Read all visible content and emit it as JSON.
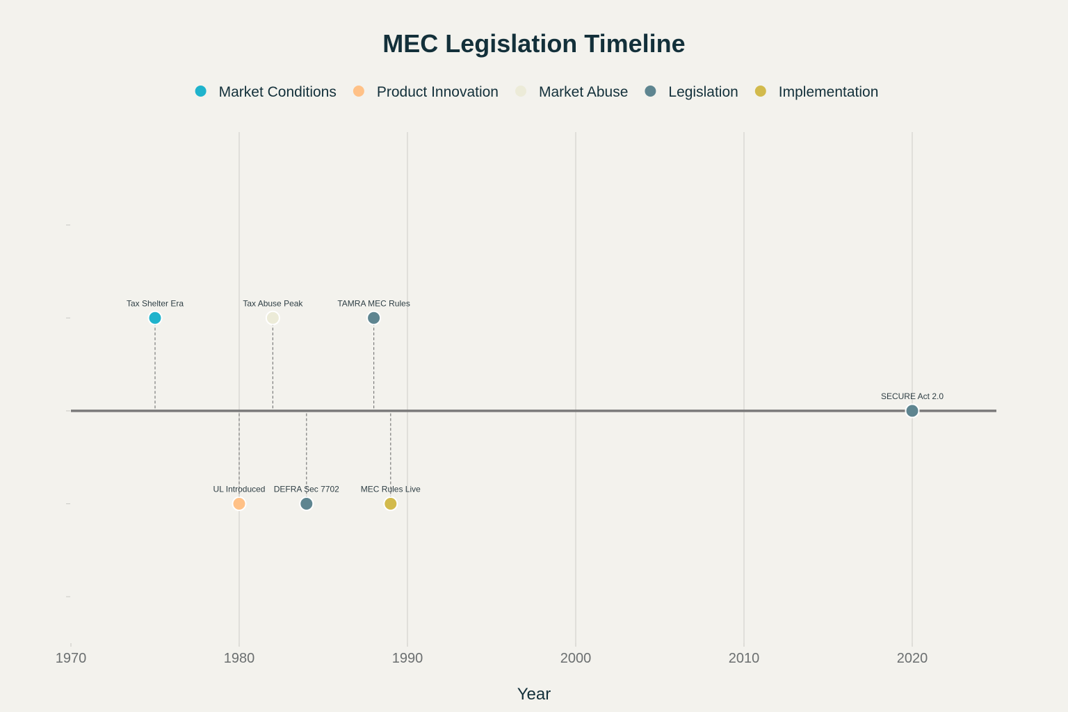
{
  "chart_data": {
    "type": "scatter",
    "title": "MEC Legislation Timeline",
    "xlabel": "Year",
    "ylabel": "",
    "xlim": [
      1970,
      2025
    ],
    "ylim": [
      -2.5,
      3
    ],
    "x_ticks": [
      1970,
      1980,
      1990,
      2000,
      2010,
      2020
    ],
    "y_ticks": [
      2,
      1,
      0,
      -1,
      -2
    ],
    "categories": [
      {
        "name": "Market Conditions",
        "color": "#1fb3cc"
      },
      {
        "name": "Product Innovation",
        "color": "#ffc187"
      },
      {
        "name": "Market Abuse",
        "color": "#ecebd8"
      },
      {
        "name": "Legislation",
        "color": "#5e8590"
      },
      {
        "name": "Implementation",
        "color": "#d2ba4c"
      }
    ],
    "events": [
      {
        "year": 1975,
        "y": 1,
        "label": "Tax Shelter Era",
        "category": "Market Conditions"
      },
      {
        "year": 1980,
        "y": -1,
        "label": "UL Introduced",
        "category": "Product Innovation"
      },
      {
        "year": 1982,
        "y": 1,
        "label": "Tax Abuse Peak",
        "category": "Market Abuse"
      },
      {
        "year": 1984,
        "y": -1,
        "label": "DEFRA Sec 7702",
        "category": "Legislation"
      },
      {
        "year": 1988,
        "y": 1,
        "label": "TAMRA MEC Rules",
        "category": "Legislation"
      },
      {
        "year": 1989,
        "y": -1,
        "label": "MEC Rules Live",
        "category": "Implementation"
      },
      {
        "year": 2020,
        "y": 0,
        "label": "SECURE Act 2.0",
        "category": "Legislation"
      }
    ]
  }
}
